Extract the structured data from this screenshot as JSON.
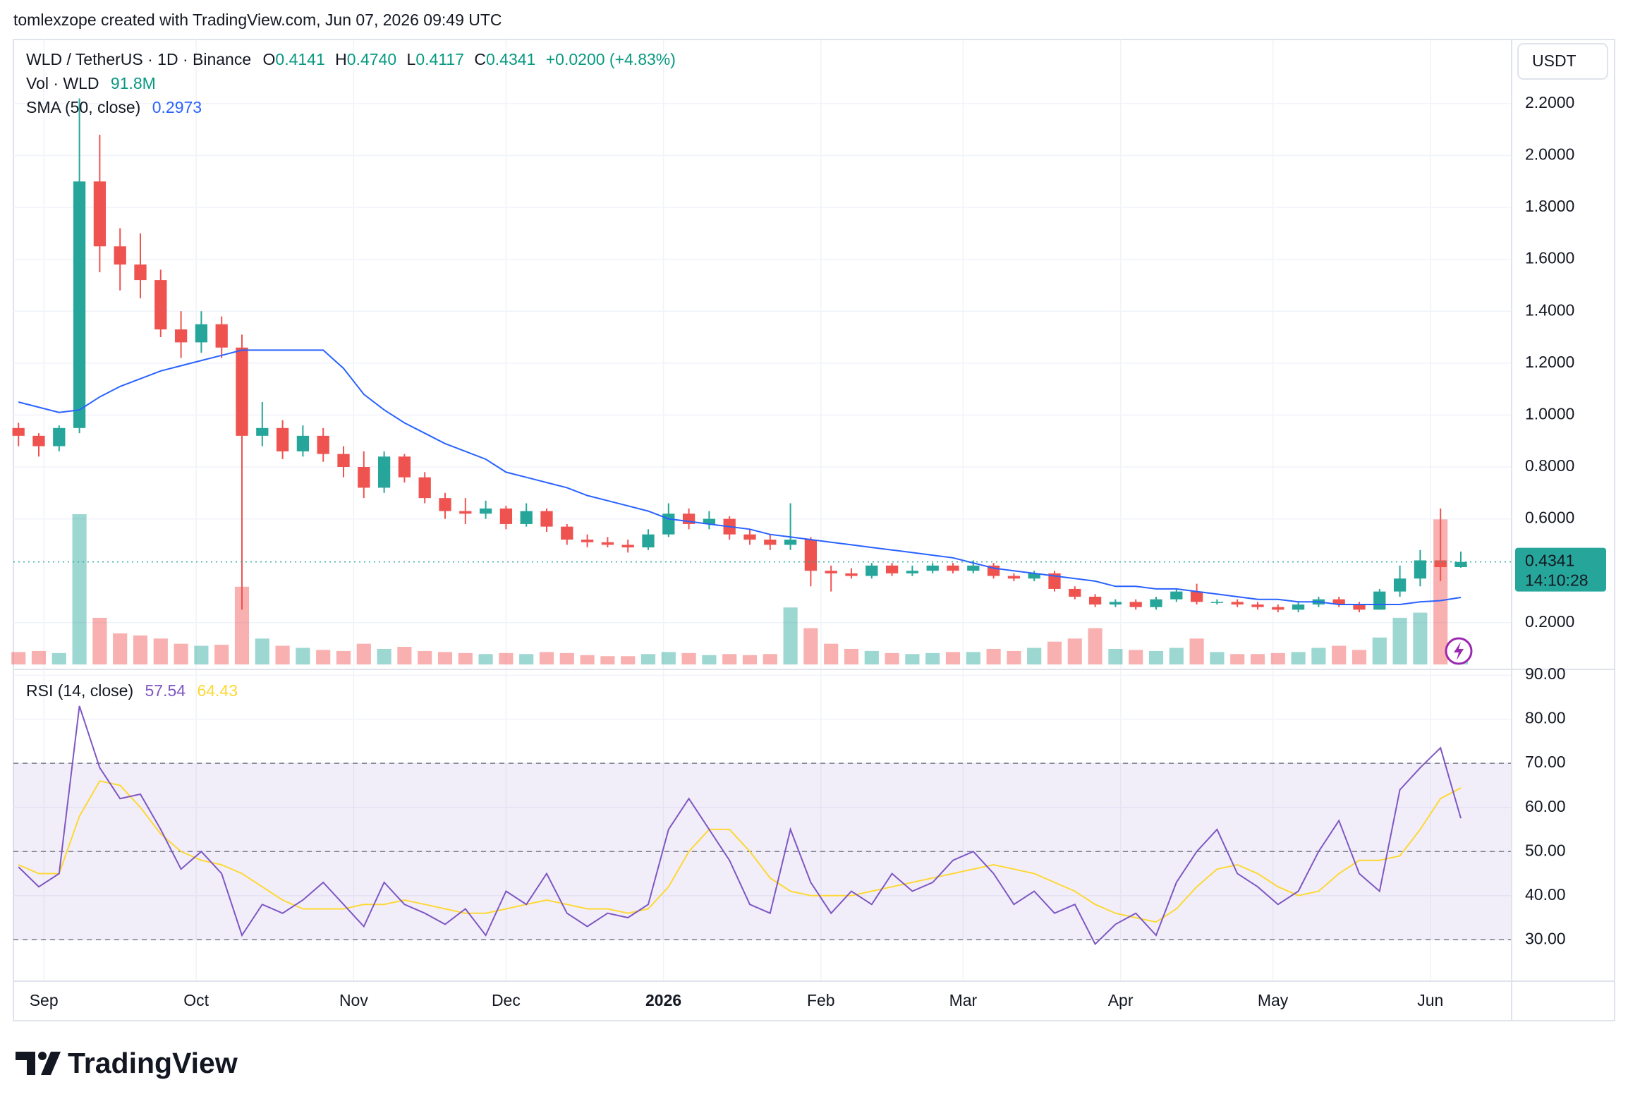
{
  "header": {
    "text": "tomlexzope created with TradingView.com, Jun 07, 2026 09:49 UTC"
  },
  "footer": {
    "brand": "TradingView"
  },
  "chart_data": {
    "type": "candlestick",
    "x": [
      "2025-08-27",
      "2025-08-31",
      "2025-09-04",
      "2025-09-08",
      "2025-09-12",
      "2025-09-16",
      "2025-09-20",
      "2025-09-24",
      "2025-09-28",
      "2025-10-02",
      "2025-10-06",
      "2025-10-10",
      "2025-10-14",
      "2025-10-18",
      "2025-10-22",
      "2025-10-26",
      "2025-10-30",
      "2025-11-03",
      "2025-11-07",
      "2025-11-11",
      "2025-11-15",
      "2025-11-19",
      "2025-11-23",
      "2025-11-27",
      "2025-12-01",
      "2025-12-05",
      "2025-12-09",
      "2025-12-13",
      "2025-12-17",
      "2025-12-21",
      "2025-12-25",
      "2025-12-29",
      "2026-01-02",
      "2026-01-06",
      "2026-01-10",
      "2026-01-14",
      "2026-01-18",
      "2026-01-22",
      "2026-01-26",
      "2026-01-30",
      "2026-02-03",
      "2026-02-07",
      "2026-02-11",
      "2026-02-15",
      "2026-02-19",
      "2026-02-23",
      "2026-02-27",
      "2026-03-03",
      "2026-03-07",
      "2026-03-11",
      "2026-03-15",
      "2026-03-19",
      "2026-03-23",
      "2026-03-27",
      "2026-03-31",
      "2026-04-04",
      "2026-04-08",
      "2026-04-12",
      "2026-04-16",
      "2026-04-20",
      "2026-04-24",
      "2026-04-28",
      "2026-05-02",
      "2026-05-06",
      "2026-05-10",
      "2026-05-14",
      "2026-05-18",
      "2026-05-22",
      "2026-05-26",
      "2026-05-30",
      "2026-06-03",
      "2026-06-07"
    ],
    "open": [
      0.95,
      0.92,
      0.88,
      0.95,
      1.9,
      1.65,
      1.58,
      1.52,
      1.33,
      1.28,
      1.35,
      1.26,
      0.92,
      0.95,
      0.86,
      0.92,
      0.85,
      0.8,
      0.72,
      0.84,
      0.76,
      0.68,
      0.63,
      0.62,
      0.64,
      0.58,
      0.63,
      0.57,
      0.52,
      0.51,
      0.5,
      0.49,
      0.54,
      0.62,
      0.58,
      0.6,
      0.54,
      0.52,
      0.5,
      0.52,
      0.4,
      0.39,
      0.38,
      0.42,
      0.39,
      0.4,
      0.42,
      0.4,
      0.42,
      0.38,
      0.37,
      0.39,
      0.33,
      0.3,
      0.27,
      0.28,
      0.26,
      0.29,
      0.32,
      0.28,
      0.28,
      0.27,
      0.26,
      0.25,
      0.27,
      0.29,
      0.27,
      0.25,
      0.32,
      0.37,
      0.44,
      0.4141
    ],
    "high": [
      0.97,
      0.93,
      0.96,
      2.22,
      2.08,
      1.72,
      1.7,
      1.56,
      1.4,
      1.4,
      1.38,
      1.31,
      1.05,
      0.98,
      0.96,
      0.95,
      0.88,
      0.86,
      0.86,
      0.85,
      0.78,
      0.7,
      0.68,
      0.67,
      0.65,
      0.66,
      0.64,
      0.58,
      0.54,
      0.53,
      0.52,
      0.56,
      0.66,
      0.64,
      0.63,
      0.61,
      0.56,
      0.54,
      0.66,
      0.53,
      0.42,
      0.41,
      0.43,
      0.43,
      0.42,
      0.43,
      0.43,
      0.44,
      0.43,
      0.39,
      0.4,
      0.4,
      0.34,
      0.31,
      0.29,
      0.29,
      0.3,
      0.33,
      0.35,
      0.29,
      0.29,
      0.28,
      0.27,
      0.28,
      0.3,
      0.3,
      0.28,
      0.33,
      0.42,
      0.48,
      0.64,
      0.474
    ],
    "low": [
      0.88,
      0.84,
      0.86,
      0.93,
      1.55,
      1.48,
      1.45,
      1.3,
      1.22,
      1.24,
      1.22,
      0.25,
      0.88,
      0.83,
      0.84,
      0.82,
      0.76,
      0.68,
      0.7,
      0.74,
      0.66,
      0.6,
      0.58,
      0.6,
      0.56,
      0.57,
      0.55,
      0.5,
      0.49,
      0.49,
      0.47,
      0.48,
      0.53,
      0.56,
      0.56,
      0.52,
      0.5,
      0.48,
      0.48,
      0.34,
      0.32,
      0.37,
      0.37,
      0.38,
      0.38,
      0.39,
      0.39,
      0.39,
      0.37,
      0.36,
      0.36,
      0.32,
      0.29,
      0.26,
      0.26,
      0.25,
      0.25,
      0.28,
      0.27,
      0.27,
      0.26,
      0.25,
      0.24,
      0.24,
      0.26,
      0.26,
      0.24,
      0.25,
      0.3,
      0.34,
      0.36,
      0.4117
    ],
    "close": [
      0.92,
      0.88,
      0.95,
      1.9,
      1.65,
      1.58,
      1.52,
      1.33,
      1.28,
      1.35,
      1.26,
      0.92,
      0.95,
      0.86,
      0.92,
      0.85,
      0.8,
      0.72,
      0.84,
      0.76,
      0.68,
      0.63,
      0.62,
      0.64,
      0.58,
      0.63,
      0.57,
      0.52,
      0.51,
      0.5,
      0.49,
      0.54,
      0.62,
      0.58,
      0.6,
      0.54,
      0.52,
      0.5,
      0.52,
      0.4,
      0.39,
      0.38,
      0.42,
      0.39,
      0.4,
      0.42,
      0.4,
      0.42,
      0.38,
      0.37,
      0.39,
      0.33,
      0.3,
      0.27,
      0.28,
      0.26,
      0.29,
      0.32,
      0.28,
      0.28,
      0.27,
      0.26,
      0.25,
      0.27,
      0.29,
      0.27,
      0.25,
      0.32,
      0.37,
      0.44,
      0.414,
      0.4341
    ],
    "up_color": "#26a69a",
    "down_color": "#ef5350",
    "xlim": [
      "2025-08-26",
      "2026-06-17"
    ],
    "xticks": [
      {
        "value": "2025-09-01",
        "label": "Sep"
      },
      {
        "value": "2025-10-01",
        "label": "Oct"
      },
      {
        "value": "2025-11-01",
        "label": "Nov"
      },
      {
        "value": "2025-12-01",
        "label": "Dec"
      },
      {
        "value": "2026-01-01",
        "label": "2026"
      },
      {
        "value": "2026-02-01",
        "label": "Feb"
      },
      {
        "value": "2026-03-01",
        "label": "Mar"
      },
      {
        "value": "2026-04-01",
        "label": "Apr"
      },
      {
        "value": "2026-05-01",
        "label": "May"
      },
      {
        "value": "2026-06-01",
        "label": "Jun"
      }
    ],
    "ylim": [
      0.02,
      2.447
    ],
    "yticks": [
      {
        "value": 0.2,
        "label": "0.2000"
      },
      {
        "value": 0.6,
        "label": "0.6000"
      },
      {
        "value": 0.8,
        "label": "0.8000"
      },
      {
        "value": 1.0,
        "label": "1.0000"
      },
      {
        "value": 1.2,
        "label": "1.2000"
      },
      {
        "value": 1.4,
        "label": "1.4000"
      },
      {
        "value": 1.6,
        "label": "1.6000"
      },
      {
        "value": 1.8,
        "label": "1.8000"
      },
      {
        "value": 2.0,
        "label": "2.0000"
      },
      {
        "value": 2.2,
        "label": "2.2000"
      }
    ],
    "grid": true,
    "axis_unit": "USDT",
    "legend": {
      "symbol": "WLD / TetherUS · 1D · Binance",
      "o": "O",
      "open": "0.4141",
      "h": "H",
      "high": "0.4740",
      "l": "L",
      "low": "0.4117",
      "c": "C",
      "close": "0.4341",
      "change": "+0.0200 (+4.83%)",
      "countdown": "14:10:28"
    },
    "volume": {
      "name": "Vol · WLD",
      "label": "91.8M",
      "values": [
        120,
        130,
        110,
        1450,
        450,
        300,
        280,
        250,
        200,
        180,
        190,
        750,
        250,
        180,
        160,
        140,
        130,
        200,
        150,
        170,
        130,
        120,
        110,
        100,
        110,
        100,
        120,
        110,
        90,
        80,
        80,
        100,
        120,
        110,
        90,
        100,
        90,
        100,
        550,
        350,
        200,
        150,
        130,
        110,
        100,
        110,
        120,
        120,
        150,
        130,
        160,
        220,
        250,
        350,
        150,
        140,
        130,
        160,
        250,
        120,
        100,
        100,
        110,
        120,
        160,
        180,
        140,
        260,
        450,
        500,
        1400,
        91.8
      ]
    },
    "sma": {
      "name": "SMA (50, close)",
      "color": "#2962ff",
      "values": [
        1.05,
        1.03,
        1.01,
        1.02,
        1.07,
        1.11,
        1.14,
        1.17,
        1.19,
        1.21,
        1.23,
        1.25,
        1.25,
        1.25,
        1.25,
        1.25,
        1.18,
        1.08,
        1.02,
        0.97,
        0.93,
        0.89,
        0.86,
        0.83,
        0.78,
        0.76,
        0.74,
        0.72,
        0.69,
        0.67,
        0.65,
        0.63,
        0.6,
        0.59,
        0.58,
        0.57,
        0.56,
        0.54,
        0.53,
        0.52,
        0.51,
        0.5,
        0.49,
        0.48,
        0.47,
        0.46,
        0.45,
        0.43,
        0.41,
        0.4,
        0.39,
        0.38,
        0.37,
        0.36,
        0.34,
        0.34,
        0.33,
        0.33,
        0.32,
        0.31,
        0.3,
        0.29,
        0.29,
        0.28,
        0.28,
        0.27,
        0.27,
        0.27,
        0.27,
        0.28,
        0.285,
        0.2973
      ]
    },
    "rsi": {
      "name": "RSI (14, close)",
      "ylim": [
        20.6,
        91.3
      ],
      "yticks": [
        {
          "value": 30,
          "label": "30.00"
        },
        {
          "value": 40,
          "label": "40.00"
        },
        {
          "value": 50,
          "label": "50.00"
        },
        {
          "value": 60,
          "label": "60.00"
        },
        {
          "value": 70,
          "label": "70.00"
        },
        {
          "value": 80,
          "label": "80.00"
        },
        {
          "value": 90,
          "label": "90.00"
        }
      ],
      "band": [
        30,
        70
      ],
      "midline": 50,
      "band_color": "#7e57c2",
      "series": [
        {
          "color": "#7e57c2",
          "values": [
            46.5,
            42,
            45,
            83,
            69,
            62,
            63,
            55,
            46,
            50,
            45,
            31,
            38,
            36,
            39,
            43,
            38,
            33,
            43,
            38,
            36,
            33.5,
            37,
            31,
            41,
            38,
            45,
            36,
            33,
            36,
            35,
            38,
            55,
            62,
            55,
            48,
            38,
            36,
            55,
            43,
            36,
            41,
            38,
            45,
            41,
            43,
            48,
            50,
            45,
            38,
            41,
            36,
            38,
            29,
            33.5,
            36,
            31,
            43,
            50,
            55,
            45,
            42,
            38,
            41,
            50,
            57,
            45,
            41,
            64,
            69,
            73.5,
            57.54
          ]
        },
        {
          "color": "#fdd835",
          "values": [
            47,
            45,
            45,
            58,
            66,
            65,
            60,
            54,
            50,
            48,
            47,
            45,
            42,
            39,
            37,
            37,
            37,
            38,
            38,
            39,
            38,
            37,
            36,
            36,
            37,
            38,
            39,
            38,
            37,
            37,
            36,
            37,
            42,
            50,
            55,
            55,
            50,
            44,
            41,
            40,
            40,
            40,
            41,
            42,
            43,
            44,
            45,
            46,
            47,
            46,
            45,
            43,
            41,
            38,
            36,
            35,
            34,
            37,
            42,
            46,
            47,
            45,
            42,
            40,
            41,
            45,
            48,
            48,
            49,
            55,
            62,
            64.43
          ]
        }
      ]
    }
  }
}
